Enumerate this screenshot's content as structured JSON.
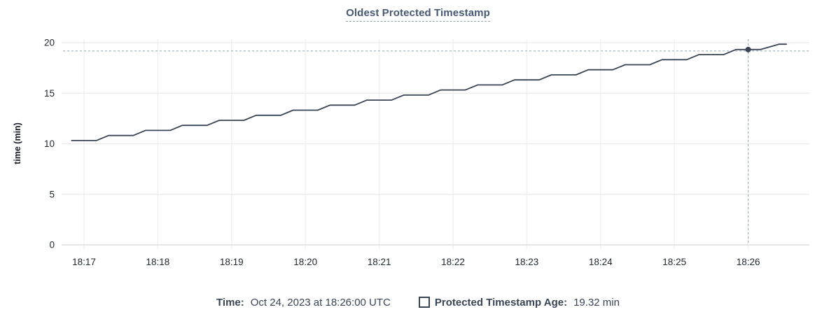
{
  "title": "Oldest Protected Timestamp",
  "y_axis_label": "time (min)",
  "legend": {
    "time_label": "Time:",
    "time_value": "Oct 24, 2023 at 18:26:00 UTC",
    "series_label": "Protected Timestamp Age:",
    "series_value": "19.32 min"
  },
  "colors": {
    "title": "#475872",
    "series_line": "#394455",
    "hover_dot": "#394455",
    "crosshair": "#9db4bf",
    "gridline_h": "#ededed",
    "gridline_v": "#f1f1f1",
    "axis_line": "#dedede",
    "tick_label": "#242a35"
  },
  "chart_data": {
    "type": "line",
    "title": "Oldest Protected Timestamp",
    "xlabel": "",
    "ylabel": "time (min)",
    "ylim": [
      0,
      20
    ],
    "y_ticks": [
      0,
      5,
      10,
      15,
      20
    ],
    "x_ticks": [
      "18:17",
      "18:18",
      "18:19",
      "18:20",
      "18:21",
      "18:22",
      "18:23",
      "18:24",
      "18:25",
      "18:26"
    ],
    "grid": true,
    "legend_position": "bottom",
    "hover_point": {
      "date_label": "Oct 24, 2023 at 18:26:00 UTC",
      "time": "18:26:00",
      "value": 19.32,
      "value_label": "19.32 min"
    },
    "series": [
      {
        "name": "Protected Timestamp Age",
        "unit": "min",
        "points": [
          [
            "18:16:50",
            10.32
          ],
          [
            "18:17:10",
            10.32
          ],
          [
            "18:17:20",
            10.82
          ],
          [
            "18:17:40",
            10.82
          ],
          [
            "18:17:50",
            11.32
          ],
          [
            "18:18:10",
            11.32
          ],
          [
            "18:18:20",
            11.82
          ],
          [
            "18:18:40",
            11.82
          ],
          [
            "18:18:50",
            12.32
          ],
          [
            "18:19:10",
            12.32
          ],
          [
            "18:19:20",
            12.82
          ],
          [
            "18:19:40",
            12.82
          ],
          [
            "18:19:50",
            13.32
          ],
          [
            "18:20:10",
            13.32
          ],
          [
            "18:20:20",
            13.82
          ],
          [
            "18:20:40",
            13.82
          ],
          [
            "18:20:50",
            14.32
          ],
          [
            "18:21:10",
            14.32
          ],
          [
            "18:21:20",
            14.82
          ],
          [
            "18:21:40",
            14.82
          ],
          [
            "18:21:50",
            15.32
          ],
          [
            "18:22:10",
            15.32
          ],
          [
            "18:22:20",
            15.82
          ],
          [
            "18:22:40",
            15.82
          ],
          [
            "18:22:50",
            16.32
          ],
          [
            "18:23:10",
            16.32
          ],
          [
            "18:23:20",
            16.82
          ],
          [
            "18:23:40",
            16.82
          ],
          [
            "18:23:50",
            17.32
          ],
          [
            "18:24:10",
            17.32
          ],
          [
            "18:24:20",
            17.82
          ],
          [
            "18:24:40",
            17.82
          ],
          [
            "18:24:50",
            18.32
          ],
          [
            "18:25:10",
            18.32
          ],
          [
            "18:25:20",
            18.82
          ],
          [
            "18:25:40",
            18.82
          ],
          [
            "18:25:50",
            19.32
          ],
          [
            "18:26:10",
            19.32
          ],
          [
            "18:26:25",
            19.85
          ],
          [
            "18:26:31",
            19.85
          ]
        ]
      }
    ]
  }
}
